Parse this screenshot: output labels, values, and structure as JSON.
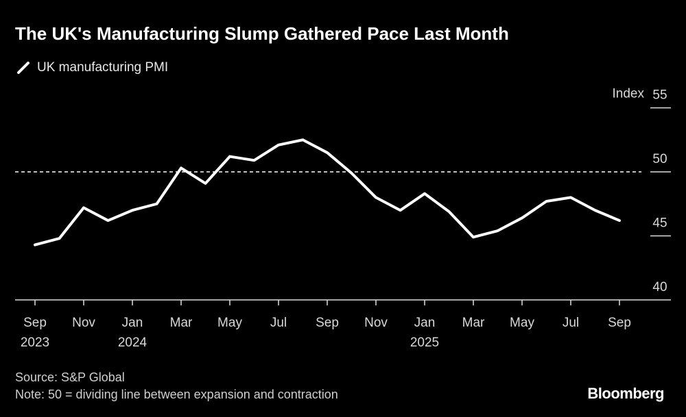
{
  "title": "The UK's Manufacturing Slump Gathered Pace Last Month",
  "footer": {
    "source": "Source: S&P Global",
    "note": "Note: 50 = dividing line between expansion and contraction",
    "logo": "Bloomberg"
  },
  "chart_data": {
    "type": "line",
    "title": "The UK's Manufacturing Slump Gathered Pace Last Month",
    "ylabel": "Index",
    "ylim": [
      40,
      55
    ],
    "yticks": [
      "55",
      "50",
      "45",
      "40"
    ],
    "reference_line": {
      "y": 50,
      "style": "dashed"
    },
    "legend_placement": "top-left",
    "grid": false,
    "x_tick_labels": [
      {
        "month": "Sep",
        "year": "2023"
      },
      {
        "month": "Nov",
        "year": ""
      },
      {
        "month": "Jan",
        "year": "2024"
      },
      {
        "month": "Mar",
        "year": ""
      },
      {
        "month": "May",
        "year": ""
      },
      {
        "month": "Jul",
        "year": ""
      },
      {
        "month": "Sep",
        "year": ""
      },
      {
        "month": "Nov",
        "year": ""
      },
      {
        "month": "Jan",
        "year": "2025"
      },
      {
        "month": "Mar",
        "year": ""
      },
      {
        "month": "May",
        "year": ""
      },
      {
        "month": "Jul",
        "year": ""
      },
      {
        "month": "Sep",
        "year": ""
      }
    ],
    "series": [
      {
        "name": "UK manufacturing PMI",
        "color": "#ffffff",
        "x": [
          "2023-09",
          "2023-10",
          "2023-11",
          "2023-12",
          "2024-01",
          "2024-02",
          "2024-03",
          "2024-04",
          "2024-05",
          "2024-06",
          "2024-07",
          "2024-08",
          "2024-09",
          "2024-10",
          "2024-11",
          "2024-12",
          "2025-01",
          "2025-02",
          "2025-03",
          "2025-04",
          "2025-05",
          "2025-06",
          "2025-07",
          "2025-08",
          "2025-09"
        ],
        "values": [
          44.3,
          44.8,
          47.2,
          46.2,
          47.0,
          47.5,
          50.3,
          49.1,
          51.2,
          50.9,
          52.1,
          52.5,
          51.5,
          49.9,
          48.0,
          47.0,
          48.3,
          46.9,
          44.9,
          45.4,
          46.4,
          47.7,
          48.0,
          47.0,
          46.2
        ]
      }
    ]
  }
}
